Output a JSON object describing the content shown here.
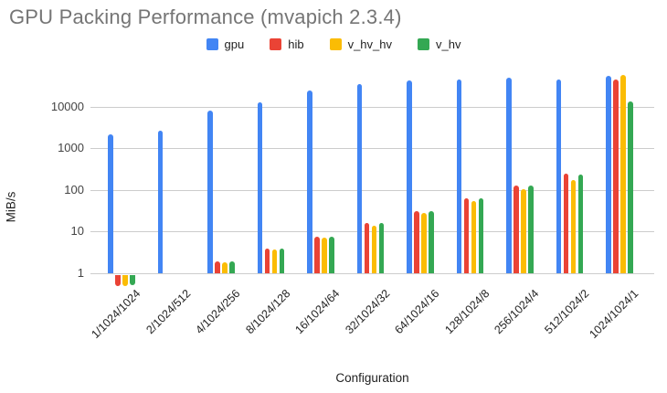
{
  "chart_data": {
    "type": "bar",
    "title": "GPU Packing Performance (mvapich 2.3.4)",
    "xlabel": "Configuration",
    "ylabel": "MiB/s",
    "y_scale": "log",
    "y_ticks": [
      1,
      10,
      100,
      1000,
      10000
    ],
    "ylim": [
      0.45,
      63000
    ],
    "legend_position": "top",
    "grid": "horizontal-only",
    "categories": [
      "1/1024/1024",
      "2/1024/512",
      "4/1024/256",
      "8/1024/128",
      "16/1024/64",
      "32/1024/32",
      "64/1024/16",
      "128/1024/8",
      "256/1024/4",
      "512/1024/2",
      "1024/1024/1"
    ],
    "series": [
      {
        "name": "gpu",
        "color": "#4285F4",
        "values": [
          2200,
          2700,
          8100,
          12800,
          24000,
          35000,
          43000,
          45000,
          48500,
          45000,
          54000
        ]
      },
      {
        "name": "hib",
        "color": "#EA4335",
        "values": [
          0.5,
          null,
          1.9,
          3.9,
          7.6,
          16,
          31,
          63,
          128,
          250,
          44000
        ]
      },
      {
        "name": "v_hv_hv",
        "color": "#FBBC04",
        "values": [
          0.5,
          null,
          1.8,
          3.7,
          7.1,
          14,
          28,
          53,
          103,
          175,
          56000
        ]
      },
      {
        "name": "v_hv",
        "color": "#34A853",
        "values": [
          0.52,
          null,
          1.9,
          3.9,
          7.7,
          16,
          31,
          62,
          126,
          228,
          13500
        ]
      }
    ]
  }
}
